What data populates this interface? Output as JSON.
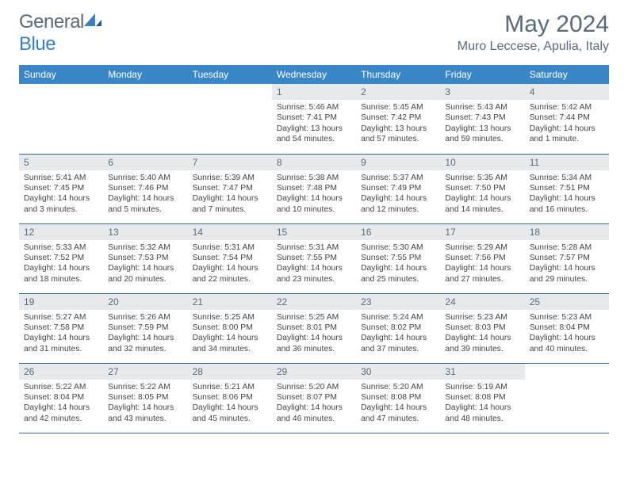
{
  "logo": {
    "text1": "General",
    "text2": "Blue"
  },
  "title": "May 2024",
  "location": "Muro Leccese, Apulia, Italy",
  "colors": {
    "header_bg": "#3a87c7",
    "header_text": "#ffffff",
    "daynum_bg": "#e6eaed",
    "logo_gray": "#5a6a78",
    "logo_blue": "#3a7fc4",
    "row_border": "#3a6a8f"
  },
  "day_headers": [
    "Sunday",
    "Monday",
    "Tuesday",
    "Wednesday",
    "Thursday",
    "Friday",
    "Saturday"
  ],
  "first_weekday": 3,
  "days": [
    {
      "n": 1,
      "sunrise": "5:46 AM",
      "sunset": "7:41 PM",
      "daylight": "13 hours and 54 minutes."
    },
    {
      "n": 2,
      "sunrise": "5:45 AM",
      "sunset": "7:42 PM",
      "daylight": "13 hours and 57 minutes."
    },
    {
      "n": 3,
      "sunrise": "5:43 AM",
      "sunset": "7:43 PM",
      "daylight": "13 hours and 59 minutes."
    },
    {
      "n": 4,
      "sunrise": "5:42 AM",
      "sunset": "7:44 PM",
      "daylight": "14 hours and 1 minute."
    },
    {
      "n": 5,
      "sunrise": "5:41 AM",
      "sunset": "7:45 PM",
      "daylight": "14 hours and 3 minutes."
    },
    {
      "n": 6,
      "sunrise": "5:40 AM",
      "sunset": "7:46 PM",
      "daylight": "14 hours and 5 minutes."
    },
    {
      "n": 7,
      "sunrise": "5:39 AM",
      "sunset": "7:47 PM",
      "daylight": "14 hours and 7 minutes."
    },
    {
      "n": 8,
      "sunrise": "5:38 AM",
      "sunset": "7:48 PM",
      "daylight": "14 hours and 10 minutes."
    },
    {
      "n": 9,
      "sunrise": "5:37 AM",
      "sunset": "7:49 PM",
      "daylight": "14 hours and 12 minutes."
    },
    {
      "n": 10,
      "sunrise": "5:35 AM",
      "sunset": "7:50 PM",
      "daylight": "14 hours and 14 minutes."
    },
    {
      "n": 11,
      "sunrise": "5:34 AM",
      "sunset": "7:51 PM",
      "daylight": "14 hours and 16 minutes."
    },
    {
      "n": 12,
      "sunrise": "5:33 AM",
      "sunset": "7:52 PM",
      "daylight": "14 hours and 18 minutes."
    },
    {
      "n": 13,
      "sunrise": "5:32 AM",
      "sunset": "7:53 PM",
      "daylight": "14 hours and 20 minutes."
    },
    {
      "n": 14,
      "sunrise": "5:31 AM",
      "sunset": "7:54 PM",
      "daylight": "14 hours and 22 minutes."
    },
    {
      "n": 15,
      "sunrise": "5:31 AM",
      "sunset": "7:55 PM",
      "daylight": "14 hours and 23 minutes."
    },
    {
      "n": 16,
      "sunrise": "5:30 AM",
      "sunset": "7:55 PM",
      "daylight": "14 hours and 25 minutes."
    },
    {
      "n": 17,
      "sunrise": "5:29 AM",
      "sunset": "7:56 PM",
      "daylight": "14 hours and 27 minutes."
    },
    {
      "n": 18,
      "sunrise": "5:28 AM",
      "sunset": "7:57 PM",
      "daylight": "14 hours and 29 minutes."
    },
    {
      "n": 19,
      "sunrise": "5:27 AM",
      "sunset": "7:58 PM",
      "daylight": "14 hours and 31 minutes."
    },
    {
      "n": 20,
      "sunrise": "5:26 AM",
      "sunset": "7:59 PM",
      "daylight": "14 hours and 32 minutes."
    },
    {
      "n": 21,
      "sunrise": "5:25 AM",
      "sunset": "8:00 PM",
      "daylight": "14 hours and 34 minutes."
    },
    {
      "n": 22,
      "sunrise": "5:25 AM",
      "sunset": "8:01 PM",
      "daylight": "14 hours and 36 minutes."
    },
    {
      "n": 23,
      "sunrise": "5:24 AM",
      "sunset": "8:02 PM",
      "daylight": "14 hours and 37 minutes."
    },
    {
      "n": 24,
      "sunrise": "5:23 AM",
      "sunset": "8:03 PM",
      "daylight": "14 hours and 39 minutes."
    },
    {
      "n": 25,
      "sunrise": "5:23 AM",
      "sunset": "8:04 PM",
      "daylight": "14 hours and 40 minutes."
    },
    {
      "n": 26,
      "sunrise": "5:22 AM",
      "sunset": "8:04 PM",
      "daylight": "14 hours and 42 minutes."
    },
    {
      "n": 27,
      "sunrise": "5:22 AM",
      "sunset": "8:05 PM",
      "daylight": "14 hours and 43 minutes."
    },
    {
      "n": 28,
      "sunrise": "5:21 AM",
      "sunset": "8:06 PM",
      "daylight": "14 hours and 45 minutes."
    },
    {
      "n": 29,
      "sunrise": "5:20 AM",
      "sunset": "8:07 PM",
      "daylight": "14 hours and 46 minutes."
    },
    {
      "n": 30,
      "sunrise": "5:20 AM",
      "sunset": "8:08 PM",
      "daylight": "14 hours and 47 minutes."
    },
    {
      "n": 31,
      "sunrise": "5:19 AM",
      "sunset": "8:08 PM",
      "daylight": "14 hours and 48 minutes."
    }
  ],
  "labels": {
    "sunrise": "Sunrise:",
    "sunset": "Sunset:",
    "daylight": "Daylight:"
  }
}
